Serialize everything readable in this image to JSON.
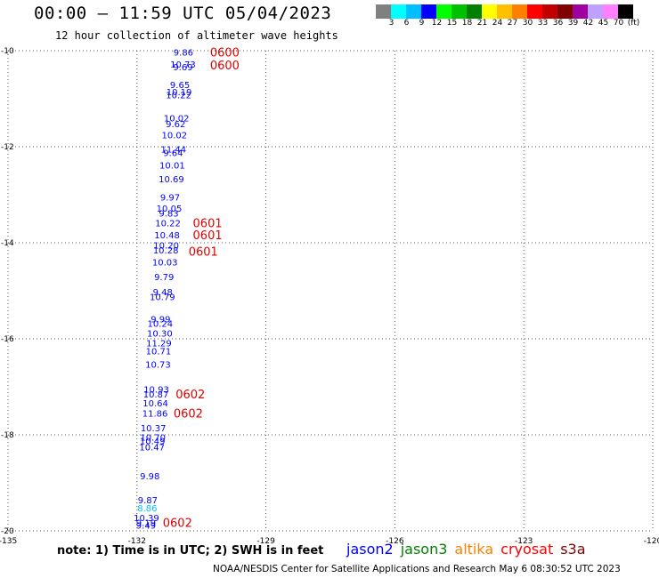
{
  "header": {
    "title": "00:00 – 11:59 UTC 05/04/2023",
    "subtitle": "12 hour collection of altimeter wave heights"
  },
  "legend": {
    "colors": [
      "#808080",
      "#00ffff",
      "#00bfff",
      "#0000ff",
      "#00ff00",
      "#00c000",
      "#008000",
      "#ffff00",
      "#ffc000",
      "#ff8000",
      "#ff0000",
      "#c00000",
      "#800000",
      "#a000a0",
      "#c0a0ff",
      "#ff80ff",
      "#000000"
    ],
    "labels": [
      "",
      "3",
      "6",
      "9",
      "12",
      "15",
      "18",
      "21",
      "24",
      "27",
      "30",
      "33",
      "36",
      "39",
      "42",
      "45",
      "70",
      "(ft)"
    ]
  },
  "chart_data": {
    "type": "scatter",
    "xlim": [
      -135,
      -120
    ],
    "ylim": [
      -20,
      -10
    ],
    "x_ticks": [
      "-135",
      "-132",
      "-129",
      "-126",
      "-123",
      "-120"
    ],
    "y_ticks": [
      "-10",
      "-12",
      "-14",
      "-16",
      "-18",
      "-20"
    ],
    "grid": true,
    "points": [
      {
        "lon": -130.92,
        "lat": -10.03,
        "label": "9.86",
        "color": "#0000ff"
      },
      {
        "lon": -130.93,
        "lat": -10.28,
        "label": "10.73",
        "color": "#0000ff"
      },
      {
        "lon": -130.93,
        "lat": -10.33,
        "label": "9.69",
        "color": "#0000ff"
      },
      {
        "lon": -131.0,
        "lat": -10.7,
        "label": "9.65",
        "color": "#0000ff"
      },
      {
        "lon": -131.02,
        "lat": -10.85,
        "label": "10.19",
        "color": "#0000ff"
      },
      {
        "lon": -131.03,
        "lat": -10.92,
        "label": "10.22",
        "color": "#0000ff"
      },
      {
        "lon": -131.08,
        "lat": -11.4,
        "label": "10.02",
        "color": "#0000ff"
      },
      {
        "lon": -131.1,
        "lat": -11.52,
        "label": "9.62",
        "color": "#0000ff"
      },
      {
        "lon": -131.13,
        "lat": -11.75,
        "label": "10.02",
        "color": "#0000ff"
      },
      {
        "lon": -131.15,
        "lat": -12.05,
        "label": "11.44",
        "color": "#0000ff"
      },
      {
        "lon": -131.16,
        "lat": -12.12,
        "label": "9.64",
        "color": "#0000ff"
      },
      {
        "lon": -131.18,
        "lat": -12.38,
        "label": "10.01",
        "color": "#0000ff"
      },
      {
        "lon": -131.2,
        "lat": -12.67,
        "label": "10.69",
        "color": "#0000ff"
      },
      {
        "lon": -131.23,
        "lat": -13.05,
        "label": "9.97",
        "color": "#0000ff"
      },
      {
        "lon": -131.25,
        "lat": -13.28,
        "label": "10.05",
        "color": "#0000ff"
      },
      {
        "lon": -131.26,
        "lat": -13.38,
        "label": "9.83",
        "color": "#0000ff"
      },
      {
        "lon": -131.28,
        "lat": -13.58,
        "label": "10.22",
        "color": "#0000ff"
      },
      {
        "lon": -131.3,
        "lat": -13.83,
        "label": "10.48",
        "color": "#0000ff"
      },
      {
        "lon": -131.32,
        "lat": -14.05,
        "label": "10.20",
        "color": "#0000ff"
      },
      {
        "lon": -131.33,
        "lat": -14.15,
        "label": "10.28",
        "color": "#0000ff"
      },
      {
        "lon": -131.35,
        "lat": -14.4,
        "label": "10.03",
        "color": "#0000ff"
      },
      {
        "lon": -131.37,
        "lat": -14.7,
        "label": "9.79",
        "color": "#0000ff"
      },
      {
        "lon": -131.4,
        "lat": -15.02,
        "label": "9.48",
        "color": "#0000ff"
      },
      {
        "lon": -131.41,
        "lat": -15.12,
        "label": "10.79",
        "color": "#0000ff"
      },
      {
        "lon": -131.45,
        "lat": -15.58,
        "label": "9.99",
        "color": "#0000ff"
      },
      {
        "lon": -131.46,
        "lat": -15.68,
        "label": "10.24",
        "color": "#0000ff"
      },
      {
        "lon": -131.47,
        "lat": -15.88,
        "label": "10.30",
        "color": "#0000ff"
      },
      {
        "lon": -131.49,
        "lat": -16.08,
        "label": "11.29",
        "color": "#0000ff"
      },
      {
        "lon": -131.5,
        "lat": -16.25,
        "label": "10.71",
        "color": "#0000ff"
      },
      {
        "lon": -131.51,
        "lat": -16.53,
        "label": "10.73",
        "color": "#0000ff"
      },
      {
        "lon": -131.55,
        "lat": -17.05,
        "label": "10.93",
        "color": "#0000ff"
      },
      {
        "lon": -131.56,
        "lat": -17.15,
        "label": "10.87",
        "color": "#0000ff"
      },
      {
        "lon": -131.57,
        "lat": -17.33,
        "label": "10.64",
        "color": "#0000ff"
      },
      {
        "lon": -131.58,
        "lat": -17.55,
        "label": "11.86",
        "color": "#0000ff"
      },
      {
        "lon": -131.62,
        "lat": -17.85,
        "label": "10.37",
        "color": "#0000ff"
      },
      {
        "lon": -131.63,
        "lat": -18.05,
        "label": "10.70",
        "color": "#0000ff"
      },
      {
        "lon": -131.64,
        "lat": -18.12,
        "label": "10.49",
        "color": "#0000ff"
      },
      {
        "lon": -131.65,
        "lat": -18.25,
        "label": "10.47",
        "color": "#0000ff"
      },
      {
        "lon": -131.7,
        "lat": -18.85,
        "label": "9.98",
        "color": "#0000ff"
      },
      {
        "lon": -131.75,
        "lat": -19.35,
        "label": "9.87",
        "color": "#0000ff"
      },
      {
        "lon": -131.76,
        "lat": -19.52,
        "label": "8.86",
        "color": "#00bfff"
      },
      {
        "lon": -131.78,
        "lat": -19.72,
        "label": "10.39",
        "color": "#0000ff"
      },
      {
        "lon": -131.79,
        "lat": -19.82,
        "label": "9.19",
        "color": "#0000ff"
      },
      {
        "lon": -131.79,
        "lat": -19.88,
        "label": "9.49",
        "color": "#0000ff"
      }
    ],
    "time_labels": [
      {
        "lon": -130.3,
        "lat": -10.03,
        "text": "0600"
      },
      {
        "lon": -130.3,
        "lat": -10.3,
        "text": "0600"
      },
      {
        "lon": -130.7,
        "lat": -13.58,
        "text": "0601"
      },
      {
        "lon": -130.7,
        "lat": -13.83,
        "text": "0601"
      },
      {
        "lon": -130.8,
        "lat": -14.18,
        "text": "0601"
      },
      {
        "lon": -131.1,
        "lat": -17.15,
        "text": "0602"
      },
      {
        "lon": -131.15,
        "lat": -17.55,
        "text": "0602"
      },
      {
        "lon": -131.4,
        "lat": -19.82,
        "text": "0602"
      }
    ]
  },
  "footer": {
    "note": "note:  1) Time is in UTC;  2) SWH is in feet",
    "satellites": [
      {
        "name": "jason2",
        "color": "#0000ff"
      },
      {
        "name": "jason3",
        "color": "#008000"
      },
      {
        "name": "altika",
        "color": "#ff8000"
      },
      {
        "name": "cryosat",
        "color": "#ff0000"
      },
      {
        "name": "s3a",
        "color": "#800000"
      }
    ],
    "credit": "NOAA/NESDIS Center for Satellite Applications and Research    May  6 08:30:52 UTC 2023"
  }
}
